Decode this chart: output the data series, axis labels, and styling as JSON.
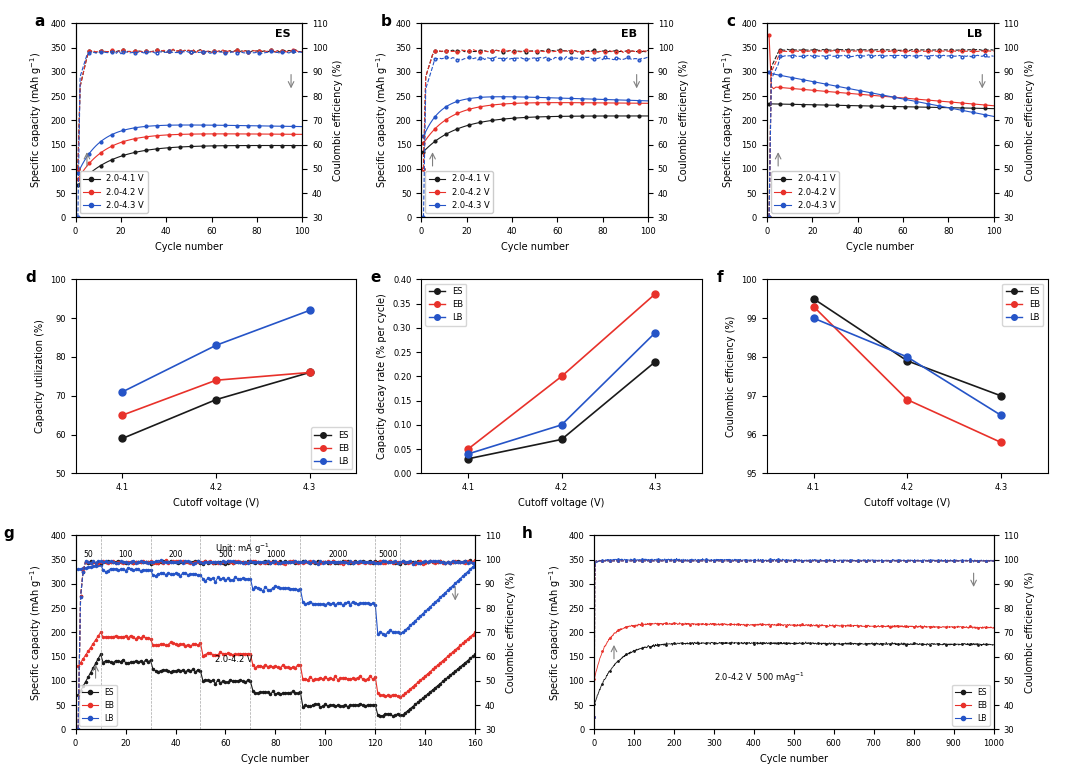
{
  "colors": {
    "black": "#1a1a1a",
    "red": "#e8312a",
    "blue": "#2554c7"
  },
  "panel_labels": [
    "a",
    "b",
    "c",
    "d",
    "e",
    "f",
    "g",
    "h"
  ],
  "panel_tags": [
    "ES",
    "EB",
    "LB"
  ],
  "legend_labels": [
    "2.0-4.1 V",
    "2.0-4.2 V",
    "2.0-4.3 V"
  ],
  "legend_labels_def": [
    "ES",
    "EB",
    "LB"
  ],
  "cutoff_voltages": [
    4.1,
    4.2,
    4.3
  ],
  "cap_util": {
    "ES": [
      59,
      69,
      76
    ],
    "EB": [
      65,
      74,
      76
    ],
    "LB": [
      71,
      83,
      92
    ]
  },
  "cap_decay": {
    "ES": [
      0.03,
      0.07,
      0.23
    ],
    "EB": [
      0.05,
      0.2,
      0.37
    ],
    "LB": [
      0.04,
      0.1,
      0.29
    ]
  },
  "coulombic_eff": {
    "ES": [
      99.5,
      97.9,
      97.0
    ],
    "EB": [
      99.3,
      96.9,
      95.8
    ],
    "LB": [
      99.0,
      98.0,
      96.5
    ]
  }
}
